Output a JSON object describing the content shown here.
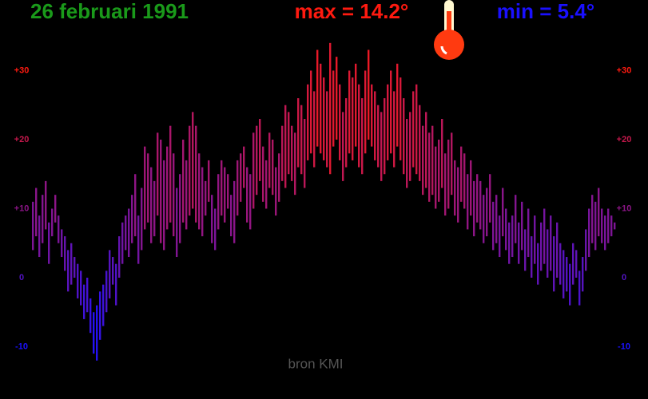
{
  "chart_data": {
    "type": "range-bar",
    "title": "26 februari 1991",
    "max_label": "max = 14.2°",
    "min_label": "min = 5.4°",
    "source": "bron KMI",
    "color_cold": "#1a10ff",
    "color_hot": "#ff1a10",
    "ylim": [
      -12,
      33
    ],
    "yticks": [
      {
        "value": 30,
        "label": "+30"
      },
      {
        "value": 20,
        "label": "+20"
      },
      {
        "value": 10,
        "label": "+10"
      },
      0,
      -10
    ],
    "lows": [
      4,
      6,
      3,
      5,
      7,
      2,
      6,
      8,
      5,
      3,
      1,
      -2,
      -1,
      0,
      -3,
      -4,
      -6,
      -5,
      -8,
      -11,
      -12,
      -9,
      -7,
      -5,
      -3,
      -1,
      -4,
      0,
      2,
      4,
      3,
      5,
      6,
      2,
      4,
      7,
      8,
      5,
      6,
      9,
      5,
      4,
      7,
      8,
      6,
      3,
      5,
      8,
      7,
      9,
      10,
      8,
      7,
      6,
      9,
      11,
      5,
      4,
      7,
      9,
      8,
      10,
      6,
      5,
      9,
      11,
      13,
      8,
      7,
      10,
      12,
      14,
      11,
      10,
      13,
      12,
      9,
      11,
      14,
      13,
      15,
      14,
      12,
      16,
      15,
      13,
      17,
      18,
      16,
      19,
      18,
      17,
      16,
      15,
      19,
      20,
      17,
      14,
      16,
      18,
      17,
      19,
      16,
      15,
      18,
      20,
      19,
      17,
      16,
      14,
      15,
      17,
      18,
      16,
      19,
      17,
      15,
      13,
      14,
      16,
      15,
      14,
      12,
      13,
      11,
      12,
      10,
      11,
      13,
      9,
      10,
      12,
      9,
      8,
      11,
      10,
      7,
      9,
      6,
      8,
      7,
      5,
      6,
      8,
      4,
      5,
      3,
      6,
      4,
      2,
      3,
      5,
      2,
      4,
      1,
      3,
      0,
      2,
      -1,
      1,
      2,
      0,
      1,
      -2,
      0,
      -1,
      -3,
      -2,
      -4,
      -1,
      0,
      -4,
      -2,
      1,
      3,
      5,
      4,
      6,
      5,
      4,
      5,
      6,
      7
    ],
    "highs": [
      11,
      13,
      9,
      12,
      14,
      8,
      10,
      12,
      9,
      7,
      6,
      4,
      5,
      3,
      2,
      1,
      -1,
      0,
      -3,
      -5,
      -4,
      -2,
      -1,
      1,
      4,
      3,
      2,
      6,
      8,
      9,
      10,
      12,
      15,
      9,
      13,
      19,
      18,
      16,
      14,
      21,
      20,
      17,
      19,
      22,
      18,
      13,
      15,
      20,
      17,
      22,
      24,
      22,
      18,
      16,
      14,
      17,
      12,
      10,
      15,
      17,
      16,
      15,
      12,
      14,
      17,
      18,
      19,
      16,
      15,
      21,
      22,
      23,
      19,
      17,
      21,
      20,
      16,
      18,
      22,
      25,
      24,
      22,
      21,
      26,
      25,
      23,
      28,
      30,
      27,
      33,
      31,
      29,
      27,
      34,
      30,
      32,
      28,
      24,
      26,
      30,
      29,
      31,
      28,
      26,
      30,
      33,
      28,
      27,
      25,
      24,
      26,
      28,
      30,
      27,
      31,
      29,
      26,
      23,
      24,
      27,
      28,
      25,
      22,
      24,
      21,
      22,
      19,
      20,
      23,
      18,
      20,
      21,
      17,
      16,
      19,
      18,
      15,
      17,
      14,
      15,
      14,
      12,
      13,
      15,
      11,
      12,
      9,
      13,
      10,
      8,
      9,
      12,
      8,
      11,
      7,
      10,
      6,
      9,
      5,
      8,
      10,
      7,
      9,
      6,
      8,
      5,
      4,
      3,
      2,
      5,
      4,
      1,
      3,
      7,
      10,
      12,
      11,
      13,
      10,
      9,
      10,
      9,
      8
    ]
  }
}
